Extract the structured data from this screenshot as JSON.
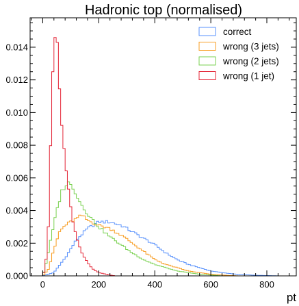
{
  "chart_data": {
    "type": "step-histogram",
    "title": "Hadronic top (normalised)",
    "xlabel": "pt",
    "ylabel": "",
    "xlim": [
      -45,
      905
    ],
    "ylim": [
      0,
      0.0158
    ],
    "bin_width": 8,
    "x_ticks": [
      0,
      200,
      400,
      600,
      800
    ],
    "x_tick_labels": [
      "0",
      "200",
      "400",
      "600",
      "800"
    ],
    "y_ticks": [
      0,
      0.002,
      0.004,
      0.006,
      0.008,
      0.01,
      0.012,
      0.014
    ],
    "y_tick_labels": [
      "0.000",
      "0.002",
      "0.004",
      "0.006",
      "0.008",
      "0.010",
      "0.012",
      "0.014"
    ],
    "legend_position": "top-right",
    "series": [
      {
        "name": "correct",
        "color": "#5790fc",
        "points": [
          [
            0,
            0
          ],
          [
            40,
            0.0002
          ],
          [
            80,
            0.0011
          ],
          [
            120,
            0.0022
          ],
          [
            160,
            0.0029
          ],
          [
            200,
            0.0033
          ],
          [
            240,
            0.0033
          ],
          [
            280,
            0.0031
          ],
          [
            320,
            0.0027
          ],
          [
            360,
            0.0023
          ],
          [
            400,
            0.0019
          ],
          [
            440,
            0.0014
          ],
          [
            480,
            0.001
          ],
          [
            520,
            0.0007
          ],
          [
            560,
            0.0005
          ],
          [
            600,
            0.0003
          ],
          [
            640,
            0.0002
          ],
          [
            680,
            0.00012
          ],
          [
            720,
            7e-05
          ],
          [
            760,
            4e-05
          ],
          [
            800,
            2e-05
          ],
          [
            850,
            0
          ]
        ]
      },
      {
        "name": "wrong (3 jets)",
        "color": "#f89c20",
        "points": [
          [
            0,
            0
          ],
          [
            20,
            0.0004
          ],
          [
            40,
            0.0016
          ],
          [
            60,
            0.0027
          ],
          [
            80,
            0.0031
          ],
          [
            100,
            0.0033
          ],
          [
            120,
            0.0035
          ],
          [
            140,
            0.0037
          ],
          [
            160,
            0.0034
          ],
          [
            200,
            0.0031
          ],
          [
            240,
            0.0029
          ],
          [
            280,
            0.0025
          ],
          [
            320,
            0.002
          ],
          [
            360,
            0.0015
          ],
          [
            400,
            0.001
          ],
          [
            440,
            0.0007
          ],
          [
            480,
            0.0005
          ],
          [
            520,
            0.0003
          ],
          [
            560,
            0.0002
          ],
          [
            600,
            0.0001
          ],
          [
            640,
            5e-05
          ],
          [
            700,
            0
          ]
        ]
      },
      {
        "name": "wrong (2 jets)",
        "color": "#7ad151",
        "points": [
          [
            0,
            0
          ],
          [
            10,
            0.0006
          ],
          [
            30,
            0.0023
          ],
          [
            50,
            0.004
          ],
          [
            70,
            0.0053
          ],
          [
            90,
            0.0057
          ],
          [
            110,
            0.0054
          ],
          [
            130,
            0.0046
          ],
          [
            160,
            0.0038
          ],
          [
            200,
            0.003
          ],
          [
            240,
            0.0024
          ],
          [
            280,
            0.0019
          ],
          [
            320,
            0.0014
          ],
          [
            360,
            0.001
          ],
          [
            400,
            0.0007
          ],
          [
            440,
            0.0005
          ],
          [
            480,
            0.0003
          ],
          [
            520,
            0.0002
          ],
          [
            560,
            0.0001
          ],
          [
            600,
            5e-05
          ],
          [
            640,
            0
          ]
        ]
      },
      {
        "name": "wrong (1 jet)",
        "color": "#e42536",
        "points": [
          [
            0,
            0
          ],
          [
            10,
            0.0005
          ],
          [
            20,
            0.003
          ],
          [
            30,
            0.0095
          ],
          [
            40,
            0.015
          ],
          [
            50,
            0.0145
          ],
          [
            60,
            0.0115
          ],
          [
            70,
            0.009
          ],
          [
            80,
            0.007
          ],
          [
            90,
            0.0055
          ],
          [
            100,
            0.0042
          ],
          [
            110,
            0.0032
          ],
          [
            120,
            0.0024
          ],
          [
            140,
            0.0014
          ],
          [
            160,
            0.0008
          ],
          [
            180,
            0.0004
          ],
          [
            200,
            0.0002
          ],
          [
            240,
            5e-05
          ],
          [
            260,
            0
          ]
        ]
      }
    ]
  }
}
